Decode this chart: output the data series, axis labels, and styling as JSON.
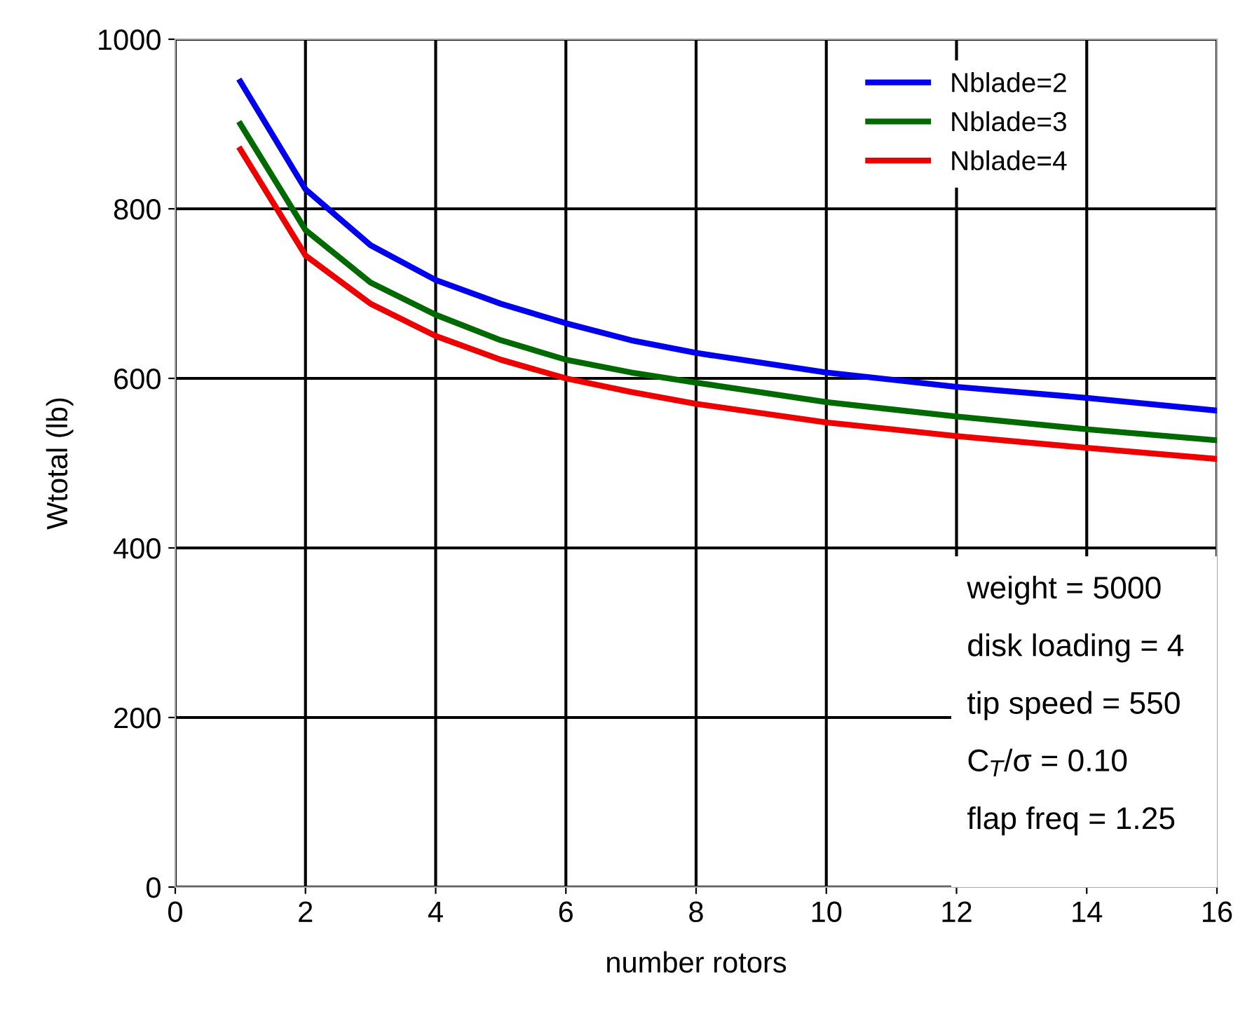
{
  "chart_data": {
    "type": "line",
    "xlabel": "number rotors",
    "ylabel": "Wtotal (lb)",
    "x": [
      1,
      2,
      3,
      4,
      5,
      6,
      7,
      8,
      10,
      12,
      14,
      16
    ],
    "series": [
      {
        "name": "Nblade=2",
        "color": "#0000ee",
        "values": [
          950,
          823,
          757,
          716,
          688,
          665,
          645,
          630,
          607,
          590,
          577,
          562
        ]
      },
      {
        "name": "Nblade=3",
        "color": "#006a00",
        "values": [
          900,
          775,
          713,
          675,
          645,
          622,
          607,
          595,
          572,
          555,
          540,
          527
        ]
      },
      {
        "name": "Nblade=4",
        "color": "#ee0000",
        "values": [
          870,
          745,
          688,
          650,
          622,
          600,
          584,
          570,
          548,
          532,
          518,
          505
        ]
      }
    ],
    "xlim": [
      0,
      16
    ],
    "xticks": [
      0,
      2,
      4,
      6,
      8,
      10,
      12,
      14,
      16
    ],
    "ylim": [
      0,
      1000
    ],
    "yticks": [
      0,
      200,
      400,
      600,
      800,
      1000
    ],
    "grid": true,
    "legend": "top right",
    "marker": "none",
    "line_style": "solid",
    "annotations": [
      "weight = 5000",
      "disk loading = 4",
      "tip speed = 550",
      "C$_{T}$/σ = 0.10",
      "flap freq = 1.25"
    ]
  }
}
